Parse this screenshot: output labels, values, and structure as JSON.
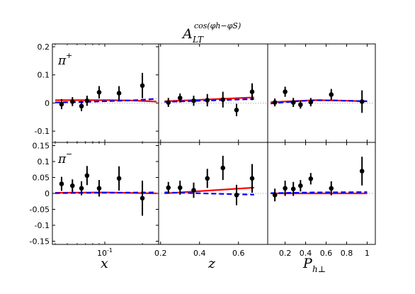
{
  "title": {
    "base": "A",
    "sup": "cos(φh−φS)",
    "sub": "LT"
  },
  "chart_data": [
    {
      "type": "scatter",
      "row": "π+",
      "panel": "x",
      "xscale": "log",
      "xlim": [
        0.038,
        0.27
      ],
      "ylim": [
        -0.14,
        0.21
      ],
      "yticks": [
        -0.1,
        0,
        0.1,
        0.2
      ],
      "xticks": [
        0.1
      ],
      "xticklabels": [
        "10^-1"
      ],
      "points": [
        [
          0.045,
          -0.004,
          0.018
        ],
        [
          0.055,
          0.005,
          0.016
        ],
        [
          0.065,
          -0.011,
          0.018
        ],
        [
          0.072,
          0.008,
          0.018
        ],
        [
          0.09,
          0.038,
          0.022
        ],
        [
          0.13,
          0.035,
          0.025
        ],
        [
          0.2,
          0.062,
          0.045
        ]
      ],
      "curves": [
        {
          "style": "solid",
          "color": "#ff0000",
          "x": [
            0.04,
            0.07,
            0.11,
            0.16,
            0.21,
            0.26
          ],
          "y": [
            0.01,
            0.01,
            0.01,
            0.009,
            0.007,
            0.005
          ]
        },
        {
          "style": "dashed",
          "color": "#0000ff",
          "x": [
            0.04,
            0.07,
            0.11,
            0.16,
            0.21,
            0.26
          ],
          "y": [
            0.002,
            0.004,
            0.007,
            0.009,
            0.012,
            0.015
          ]
        }
      ]
    },
    {
      "type": "scatter",
      "row": "π+",
      "panel": "z",
      "xlim": [
        0.19,
        0.75
      ],
      "ylim": [
        -0.14,
        0.21
      ],
      "xticks": [
        0.2,
        0.4,
        0.6
      ],
      "points": [
        [
          0.24,
          0.002,
          0.016
        ],
        [
          0.3,
          0.018,
          0.016
        ],
        [
          0.37,
          0.008,
          0.018
        ],
        [
          0.44,
          0.01,
          0.022
        ],
        [
          0.52,
          0.012,
          0.028
        ],
        [
          0.59,
          -0.025,
          0.022
        ],
        [
          0.67,
          0.04,
          0.03
        ]
      ],
      "curves": [
        {
          "style": "solid",
          "color": "#ff0000",
          "x": [
            0.22,
            0.68
          ],
          "y": [
            0.006,
            0.02
          ]
        },
        {
          "style": "dashed",
          "color": "#0000ff",
          "x": [
            0.22,
            0.68
          ],
          "y": [
            0.004,
            0.014
          ]
        }
      ]
    },
    {
      "type": "scatter",
      "row": "π+",
      "panel": "P",
      "xlim": [
        0.03,
        1.08
      ],
      "ylim": [
        -0.14,
        0.21
      ],
      "xticks": [
        0.2,
        0.4,
        0.6,
        0.8,
        1.0
      ],
      "xticklabels": [
        "0.2",
        "0.4",
        "0.6",
        "0.8",
        "1"
      ],
      "points": [
        [
          0.1,
          0.002,
          0.014
        ],
        [
          0.2,
          0.04,
          0.018
        ],
        [
          0.28,
          0.002,
          0.016
        ],
        [
          0.35,
          -0.006,
          0.014
        ],
        [
          0.45,
          0.003,
          0.015
        ],
        [
          0.65,
          0.03,
          0.02
        ],
        [
          0.95,
          0.005,
          0.04
        ]
      ],
      "curves": [
        {
          "style": "solid",
          "color": "#ff0000",
          "x": [
            0.06,
            0.3,
            0.5,
            0.7,
            1.0
          ],
          "y": [
            0.003,
            0.007,
            0.01,
            0.009,
            0.006
          ]
        },
        {
          "style": "dashed",
          "color": "#0000ff",
          "x": [
            0.06,
            0.3,
            0.5,
            0.7,
            1.0
          ],
          "y": [
            -0.002,
            0.006,
            0.01,
            0.009,
            0.006
          ]
        }
      ]
    },
    {
      "type": "scatter",
      "row": "π−",
      "panel": "x",
      "xscale": "log",
      "xlim": [
        0.038,
        0.27
      ],
      "ylim": [
        -0.16,
        0.16
      ],
      "yticks": [
        -0.15,
        -0.1,
        -0.05,
        0,
        0.05,
        0.1,
        0.15
      ],
      "xticks": [
        0.1
      ],
      "xticklabels": [
        "10^-1"
      ],
      "points": [
        [
          0.045,
          0.03,
          0.022
        ],
        [
          0.055,
          0.024,
          0.02
        ],
        [
          0.065,
          0.016,
          0.022
        ],
        [
          0.072,
          0.056,
          0.03
        ],
        [
          0.09,
          0.016,
          0.026
        ],
        [
          0.13,
          0.047,
          0.038
        ],
        [
          0.2,
          -0.015,
          0.055
        ]
      ],
      "curves": [
        {
          "style": "solid",
          "color": "#ff0000",
          "x": [
            0.04,
            0.1,
            0.26
          ],
          "y": [
            0.002,
            0.003,
            0.0
          ]
        },
        {
          "style": "dashed",
          "color": "#0000ff",
          "x": [
            0.04,
            0.1,
            0.26
          ],
          "y": [
            0.001,
            0.002,
            0.003
          ]
        }
      ]
    },
    {
      "type": "scatter",
      "row": "π−",
      "panel": "z",
      "xlim": [
        0.19,
        0.75
      ],
      "ylim": [
        -0.16,
        0.16
      ],
      "xticks": [
        0.2,
        0.4,
        0.6
      ],
      "points": [
        [
          0.24,
          0.018,
          0.018
        ],
        [
          0.3,
          0.018,
          0.022
        ],
        [
          0.37,
          0.01,
          0.024
        ],
        [
          0.44,
          0.047,
          0.03
        ],
        [
          0.52,
          0.08,
          0.038
        ],
        [
          0.59,
          -0.005,
          0.032
        ],
        [
          0.67,
          0.047,
          0.045
        ]
      ],
      "curves": [
        {
          "style": "solid",
          "color": "#ff0000",
          "x": [
            0.22,
            0.68
          ],
          "y": [
            0.0,
            0.018
          ]
        },
        {
          "style": "dashed",
          "color": "#0000ff",
          "x": [
            0.22,
            0.68
          ],
          "y": [
            0.003,
            -0.004
          ]
        }
      ]
    },
    {
      "type": "scatter",
      "row": "π−",
      "panel": "P",
      "xlim": [
        0.03,
        1.08
      ],
      "ylim": [
        -0.16,
        0.16
      ],
      "xticks": [
        0.2,
        0.4,
        0.6,
        0.8,
        1.0
      ],
      "xticklabels": [
        "0.2",
        "0.4",
        "0.6",
        "0.8",
        "1"
      ],
      "points": [
        [
          0.1,
          -0.005,
          0.02
        ],
        [
          0.2,
          0.016,
          0.024
        ],
        [
          0.28,
          0.014,
          0.022
        ],
        [
          0.35,
          0.024,
          0.018
        ],
        [
          0.45,
          0.046,
          0.018
        ],
        [
          0.65,
          0.016,
          0.022
        ],
        [
          0.95,
          0.07,
          0.045
        ]
      ],
      "curves": [
        {
          "style": "solid",
          "color": "#ff0000",
          "x": [
            0.06,
            0.5,
            1.0
          ],
          "y": [
            0.0,
            0.0,
            0.0
          ]
        },
        {
          "style": "dashed",
          "color": "#0000ff",
          "x": [
            0.06,
            0.5,
            1.0
          ],
          "y": [
            0.001,
            0.003,
            0.004
          ]
        }
      ]
    }
  ],
  "rows": [
    {
      "base": "π",
      "sup": "+"
    },
    {
      "base": "π",
      "sup": "−"
    }
  ],
  "xlabels": [
    {
      "main": "x",
      "sub": ""
    },
    {
      "main": "z",
      "sub": ""
    },
    {
      "main": "P",
      "sub": "h⊥"
    }
  ],
  "colors": {
    "theory_solid": "#ff0000",
    "theory_dashed": "#0000ff",
    "zero_line": "#999999",
    "points": "#000000"
  }
}
